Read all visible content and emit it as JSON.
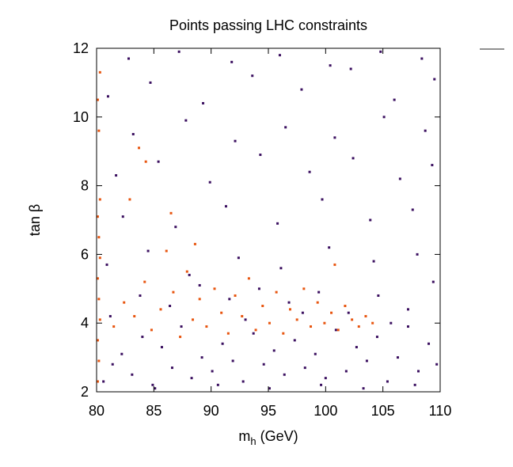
{
  "chart_data": {
    "type": "scatter",
    "title": "Points passing LHC constraints",
    "xlabel": {
      "main": "m",
      "sub": "h",
      "suffix": " (GeV)"
    },
    "ylabel": "tan β",
    "xlim": [
      80,
      110
    ],
    "ylim": [
      2,
      12
    ],
    "xticks": [
      80,
      85,
      90,
      95,
      100,
      105,
      110
    ],
    "yticks": [
      2,
      4,
      6,
      8,
      10,
      12
    ],
    "grid": false,
    "legend_marker_color": "#222222",
    "series": [
      {
        "color": "#3b1060",
        "points": [
          [
            80.6,
            2.3
          ],
          [
            81.4,
            2.8
          ],
          [
            82.2,
            3.1
          ],
          [
            83.1,
            2.5
          ],
          [
            84.0,
            3.6
          ],
          [
            84.9,
            2.2
          ],
          [
            85.7,
            3.3
          ],
          [
            86.6,
            2.7
          ],
          [
            87.4,
            3.9
          ],
          [
            88.3,
            2.4
          ],
          [
            89.2,
            3.0
          ],
          [
            90.1,
            2.6
          ],
          [
            91.0,
            3.4
          ],
          [
            91.9,
            2.9
          ],
          [
            92.8,
            2.3
          ],
          [
            93.7,
            3.7
          ],
          [
            94.6,
            2.8
          ],
          [
            95.5,
            3.2
          ],
          [
            96.4,
            2.5
          ],
          [
            97.3,
            3.5
          ],
          [
            98.2,
            2.7
          ],
          [
            99.1,
            3.1
          ],
          [
            100.0,
            2.4
          ],
          [
            100.9,
            3.8
          ],
          [
            101.8,
            2.6
          ],
          [
            102.7,
            3.3
          ],
          [
            103.6,
            2.9
          ],
          [
            104.5,
            3.6
          ],
          [
            105.4,
            2.3
          ],
          [
            106.3,
            3.0
          ],
          [
            107.2,
            3.9
          ],
          [
            108.1,
            2.6
          ],
          [
            109.0,
            3.4
          ],
          [
            109.7,
            2.8
          ],
          [
            81.2,
            4.2
          ],
          [
            83.8,
            4.8
          ],
          [
            86.4,
            4.5
          ],
          [
            89.0,
            5.1
          ],
          [
            91.6,
            4.7
          ],
          [
            94.2,
            5.0
          ],
          [
            96.8,
            4.6
          ],
          [
            99.4,
            4.9
          ],
          [
            102.0,
            4.3
          ],
          [
            104.6,
            4.8
          ],
          [
            107.2,
            4.4
          ],
          [
            109.4,
            5.2
          ],
          [
            80.9,
            5.7
          ],
          [
            84.5,
            6.1
          ],
          [
            88.1,
            5.4
          ],
          [
            92.4,
            5.9
          ],
          [
            96.1,
            5.6
          ],
          [
            100.3,
            6.2
          ],
          [
            104.2,
            5.8
          ],
          [
            108.0,
            6.0
          ],
          [
            82.3,
            7.1
          ],
          [
            86.9,
            6.8
          ],
          [
            91.3,
            7.4
          ],
          [
            95.8,
            6.9
          ],
          [
            99.7,
            7.6
          ],
          [
            103.9,
            7.0
          ],
          [
            107.6,
            7.3
          ],
          [
            81.7,
            8.3
          ],
          [
            85.4,
            8.7
          ],
          [
            89.9,
            8.1
          ],
          [
            94.3,
            8.9
          ],
          [
            98.6,
            8.4
          ],
          [
            102.4,
            8.8
          ],
          [
            106.5,
            8.2
          ],
          [
            109.3,
            8.6
          ],
          [
            83.2,
            9.5
          ],
          [
            87.8,
            9.9
          ],
          [
            92.1,
            9.3
          ],
          [
            96.5,
            9.7
          ],
          [
            100.8,
            9.4
          ],
          [
            105.1,
            10.0
          ],
          [
            108.7,
            9.6
          ],
          [
            81.0,
            10.6
          ],
          [
            84.7,
            11.0
          ],
          [
            89.3,
            10.4
          ],
          [
            93.6,
            11.2
          ],
          [
            97.9,
            10.8
          ],
          [
            102.2,
            11.4
          ],
          [
            106.0,
            10.5
          ],
          [
            109.5,
            11.1
          ],
          [
            82.8,
            11.7
          ],
          [
            87.2,
            11.9
          ],
          [
            91.8,
            11.6
          ],
          [
            96.0,
            11.8
          ],
          [
            100.4,
            11.5
          ],
          [
            104.8,
            11.9
          ],
          [
            108.4,
            11.7
          ],
          [
            85.1,
            2.1
          ],
          [
            90.6,
            2.2
          ],
          [
            95.1,
            2.1
          ],
          [
            99.6,
            2.2
          ],
          [
            103.3,
            2.1
          ],
          [
            107.8,
            2.2
          ],
          [
            93.0,
            4.1
          ],
          [
            98.0,
            4.3
          ],
          [
            105.7,
            4.0
          ]
        ]
      },
      {
        "color": "#e8550f",
        "points": [
          [
            80.1,
            2.3
          ],
          [
            80.2,
            2.9
          ],
          [
            80.1,
            3.5
          ],
          [
            80.3,
            4.1
          ],
          [
            80.2,
            4.7
          ],
          [
            80.1,
            5.3
          ],
          [
            80.3,
            5.9
          ],
          [
            80.2,
            6.5
          ],
          [
            80.1,
            7.1
          ],
          [
            80.3,
            7.6
          ],
          [
            80.2,
            9.6
          ],
          [
            80.1,
            10.5
          ],
          [
            80.3,
            11.3
          ],
          [
            81.5,
            3.9
          ],
          [
            82.4,
            4.6
          ],
          [
            83.3,
            4.2
          ],
          [
            84.2,
            5.2
          ],
          [
            84.8,
            3.8
          ],
          [
            85.6,
            4.4
          ],
          [
            86.1,
            6.1
          ],
          [
            86.7,
            4.9
          ],
          [
            87.3,
            3.6
          ],
          [
            87.9,
            5.5
          ],
          [
            88.4,
            4.1
          ],
          [
            89.0,
            4.7
          ],
          [
            89.6,
            3.9
          ],
          [
            90.3,
            5.0
          ],
          [
            90.9,
            4.3
          ],
          [
            91.5,
            3.7
          ],
          [
            92.1,
            4.8
          ],
          [
            92.7,
            4.2
          ],
          [
            93.3,
            5.3
          ],
          [
            93.9,
            3.8
          ],
          [
            94.5,
            4.5
          ],
          [
            95.1,
            4.0
          ],
          [
            95.7,
            4.9
          ],
          [
            96.3,
            3.7
          ],
          [
            96.9,
            4.4
          ],
          [
            97.5,
            4.1
          ],
          [
            98.1,
            5.0
          ],
          [
            98.7,
            3.9
          ],
          [
            99.3,
            4.6
          ],
          [
            99.9,
            4.0
          ],
          [
            100.5,
            4.3
          ],
          [
            101.1,
            3.8
          ],
          [
            101.7,
            4.5
          ],
          [
            102.3,
            4.1
          ],
          [
            102.9,
            3.9
          ],
          [
            103.5,
            4.2
          ],
          [
            104.1,
            4.0
          ],
          [
            84.3,
            8.7
          ],
          [
            82.9,
            7.6
          ],
          [
            86.5,
            7.2
          ],
          [
            88.6,
            6.3
          ],
          [
            83.7,
            9.1
          ],
          [
            100.8,
            5.7
          ]
        ]
      }
    ]
  }
}
